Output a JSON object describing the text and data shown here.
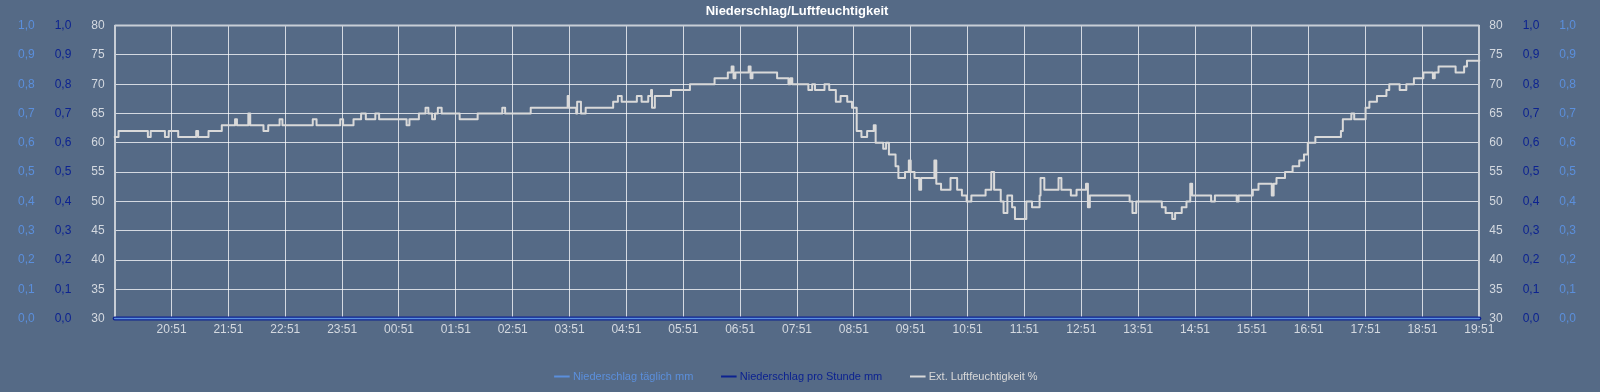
{
  "chart_data": {
    "type": "line",
    "title": "Niederschlag/Luftfeuchtigkeit",
    "xlim": [
      "--01-01T19:51",
      "--01-02T19:51"
    ],
    "xticks": [
      {
        "value": "--01-01T20:51",
        "label": "20:51"
      },
      {
        "value": "--01-01T21:51",
        "label": "21:51"
      },
      {
        "value": "--01-01T22:51",
        "label": "22:51"
      },
      {
        "value": "--01-01T23:51",
        "label": "23:51"
      },
      {
        "value": "--01-02T00:51",
        "label": "00:51"
      },
      {
        "value": "--01-02T01:51",
        "label": "01:51"
      },
      {
        "value": "--01-02T02:51",
        "label": "02:51"
      },
      {
        "value": "--01-02T03:51",
        "label": "03:51"
      },
      {
        "value": "--01-02T04:51",
        "label": "04:51"
      },
      {
        "value": "--01-02T05:51",
        "label": "05:51"
      },
      {
        "value": "--01-02T06:51",
        "label": "06:51"
      },
      {
        "value": "--01-02T07:51",
        "label": "07:51"
      },
      {
        "value": "--01-02T08:51",
        "label": "08:51"
      },
      {
        "value": "--01-02T09:51",
        "label": "09:51"
      },
      {
        "value": "--01-02T10:51",
        "label": "10:51"
      },
      {
        "value": "--01-02T11:51",
        "label": "11:51"
      },
      {
        "value": "--01-02T12:51",
        "label": "12:51"
      },
      {
        "value": "--01-02T13:51",
        "label": "13:51"
      },
      {
        "value": "--01-02T14:51",
        "label": "14:51"
      },
      {
        "value": "--01-02T15:51",
        "label": "15:51"
      },
      {
        "value": "--01-02T16:51",
        "label": "16:51"
      },
      {
        "value": "--01-02T17:51",
        "label": "17:51"
      },
      {
        "value": "--01-02T18:51",
        "label": "18:51"
      },
      {
        "value": "--01-02T19:51",
        "label": "19:51"
      }
    ],
    "ylim": [
      30,
      80
    ],
    "yticks": [
      30,
      35,
      40,
      45,
      50,
      55,
      60,
      65,
      70,
      75,
      80
    ],
    "y2lim": [
      30,
      80
    ],
    "y2ticks": [
      30,
      35,
      40,
      45,
      50,
      55,
      60,
      65,
      70,
      75,
      80
    ],
    "y3lim": [
      0,
      1
    ],
    "y3ticks": [
      {
        "value": 0,
        "label": "0,0"
      },
      {
        "value": 0.1,
        "label": "0,1"
      },
      {
        "value": 0.2,
        "label": "0,2"
      },
      {
        "value": 0.3,
        "label": "0,3"
      },
      {
        "value": 0.4,
        "label": "0,4"
      },
      {
        "value": 0.5,
        "label": "0,5"
      },
      {
        "value": 0.6,
        "label": "0,6"
      },
      {
        "value": 0.7,
        "label": "0,7"
      },
      {
        "value": 0.8,
        "label": "0,8"
      },
      {
        "value": 0.9,
        "label": "0,9"
      },
      {
        "value": 1,
        "label": "1,0"
      }
    ],
    "grid": true,
    "legend": "bottom",
    "marker": "none",
    "line_style": "solid",
    "series": [
      {
        "name": "Niederschlag täglich mm",
        "color": "#5b8fdc",
        "axis": "y3",
        "x": [
          "--01-01T19:51",
          "--01-02T19:51"
        ],
        "values": [
          0,
          0
        ]
      },
      {
        "name": "Niederschlag pro Stunde mm",
        "color": "#0c2290",
        "axis": "y3",
        "x": [
          "--01-01T19:51",
          "--01-02T19:51"
        ],
        "values": [
          0,
          0
        ]
      },
      {
        "name": "Ext. Luftfeuchtigkeit %",
        "color": "#d9d9d9",
        "type": "step",
        "x": [
          "--01-01T19:51",
          "--01-01T19:55",
          "--01-01T20:26",
          "--01-01T20:29",
          "--01-01T20:44",
          "--01-01T20:48",
          "--01-01T20:58",
          "--01-01T21:17",
          "--01-01T21:19",
          "--01-01T21:30",
          "--01-01T21:44",
          "--01-01T21:58",
          "--01-01T22:00",
          "--01-01T22:12",
          "--01-01T22:14",
          "--01-01T22:28",
          "--01-01T22:33",
          "--01-01T22:45",
          "--01-01T22:48",
          "--01-01T23:20",
          "--01-01T23:24",
          "--01-01T23:49",
          "--01-01T23:52",
          "--01-02T00:03",
          "--01-02T00:11",
          "--01-02T00:16",
          "--01-02T00:26",
          "--01-02T00:30",
          "--01-02T00:59",
          "--01-02T01:02",
          "--01-02T01:12",
          "--01-02T01:19",
          "--01-02T01:22",
          "--01-02T01:26",
          "--01-02T01:29",
          "--01-02T01:32",
          "--01-02T01:36",
          "--01-02T01:55",
          "--01-02T02:14",
          "--01-02T02:40",
          "--01-02T02:43",
          "--01-02T03:10",
          "--01-02T03:49",
          "--01-02T03:50",
          "--01-02T03:58",
          "--01-02T03:59",
          "--01-02T04:03",
          "--01-02T04:08",
          "--01-02T04:37",
          "--01-02T04:42",
          "--01-02T04:46",
          "--01-02T05:02",
          "--01-02T05:07",
          "--01-02T05:14",
          "--01-02T05:17",
          "--01-02T05:18",
          "--01-02T05:21",
          "--01-02T05:38",
          "--01-02T05:58",
          "--01-02T06:24",
          "--01-02T06:38",
          "--01-02T06:42",
          "--01-02T06:44",
          "--01-02T06:46",
          "--01-02T07:00",
          "--01-02T07:02",
          "--01-02T07:04",
          "--01-02T07:30",
          "--01-02T07:42",
          "--01-02T07:44",
          "--01-02T07:46",
          "--01-02T08:03",
          "--01-02T08:07",
          "--01-02T08:10",
          "--01-02T08:20",
          "--01-02T08:25",
          "--01-02T08:32",
          "--01-02T08:37",
          "--01-02T08:44",
          "--01-02T08:49",
          "--01-02T08:54",
          "--01-02T08:59",
          "--01-02T09:05",
          "--01-02T09:12",
          "--01-02T09:14",
          "--01-02T09:18",
          "--01-02T09:22",
          "--01-02T09:25",
          "--01-02T09:28",
          "--01-02T09:35",
          "--01-02T09:38",
          "--01-02T09:45",
          "--01-02T09:49",
          "--01-02T09:51",
          "--01-02T09:55",
          "--01-02T10:00",
          "--01-02T10:02",
          "--01-02T10:16",
          "--01-02T10:18",
          "--01-02T10:23",
          "--01-02T10:33",
          "--01-02T10:40",
          "--01-02T10:45",
          "--01-02T10:50",
          "--01-02T10:55",
          "--01-02T11:10",
          "--01-02T11:16",
          "--01-02T11:19",
          "--01-02T11:26",
          "--01-02T11:29",
          "--01-02T11:33",
          "--01-02T11:38",
          "--01-02T11:41",
          "--01-02T11:53",
          "--01-02T11:59",
          "--01-02T12:07",
          "--01-02T12:08",
          "--01-02T12:12",
          "--01-02T12:27",
          "--01-02T12:30",
          "--01-02T12:40",
          "--01-02T12:46",
          "--01-02T12:56",
          "--01-02T12:58",
          "--01-02T13:00",
          "--01-02T13:42",
          "--01-02T13:45",
          "--01-02T13:49",
          "--01-02T14:16",
          "--01-02T14:20",
          "--01-02T14:27",
          "--01-02T14:30",
          "--01-02T14:37",
          "--01-02T14:42",
          "--01-02T14:46",
          "--01-02T14:48",
          "--01-02T15:08",
          "--01-02T15:12",
          "--01-02T15:35",
          "--01-02T15:37",
          "--01-02T15:52",
          "--01-02T15:58",
          "--01-02T16:12",
          "--01-02T16:14",
          "--01-02T16:17",
          "--01-02T16:26",
          "--01-02T16:34",
          "--01-02T16:41",
          "--01-02T16:46",
          "--01-02T16:50",
          "--01-02T16:58",
          "--01-02T17:25",
          "--01-02T17:27",
          "--01-02T17:36",
          "--01-02T17:39",
          "--01-02T17:51",
          "--01-02T17:55",
          "--01-02T18:03",
          "--01-02T18:13",
          "--01-02T18:16",
          "--01-02T18:27",
          "--01-02T18:34",
          "--01-02T18:42",
          "--01-02T18:52",
          "--01-02T19:02",
          "--01-02T19:04",
          "--01-02T19:08",
          "--01-02T19:26",
          "--01-02T19:35",
          "--01-02T19:38",
          "--01-02T19:51"
        ],
        "values": [
          61,
          62,
          61,
          62,
          61,
          62,
          61,
          62,
          61,
          62,
          63,
          64,
          63,
          65,
          63,
          62,
          63,
          64,
          63,
          64,
          63,
          64,
          63,
          64,
          65,
          64,
          65,
          64,
          63,
          64,
          65,
          66,
          65,
          64,
          65,
          66,
          65,
          64,
          65,
          66,
          65,
          66,
          68,
          66,
          65,
          67,
          65,
          66,
          67,
          68,
          67,
          68,
          67,
          68,
          69,
          66,
          68,
          69,
          70,
          71,
          72,
          73,
          71,
          72,
          73,
          71,
          72,
          71,
          70,
          71,
          70,
          69,
          70,
          69,
          70,
          69,
          67,
          68,
          67,
          66,
          62,
          61,
          62,
          63,
          60,
          60,
          59,
          60,
          58,
          56,
          54,
          55,
          57,
          55,
          54,
          52,
          54,
          57,
          53,
          52,
          54,
          52,
          51,
          50,
          51,
          52,
          55,
          52,
          50,
          48,
          51,
          49,
          47,
          50,
          49,
          51,
          54,
          52,
          54,
          52,
          51,
          52,
          53,
          49,
          51,
          50,
          48,
          50,
          49,
          48,
          47,
          48,
          49,
          50,
          53,
          51,
          50,
          51,
          50,
          51,
          52,
          53,
          51,
          53,
          54,
          55,
          56,
          57,
          58,
          60,
          61,
          62,
          64,
          65,
          64,
          66,
          67,
          68,
          69,
          70,
          69,
          70,
          71,
          72,
          71,
          72,
          73,
          72,
          73,
          74,
          74
        ]
      }
    ]
  }
}
